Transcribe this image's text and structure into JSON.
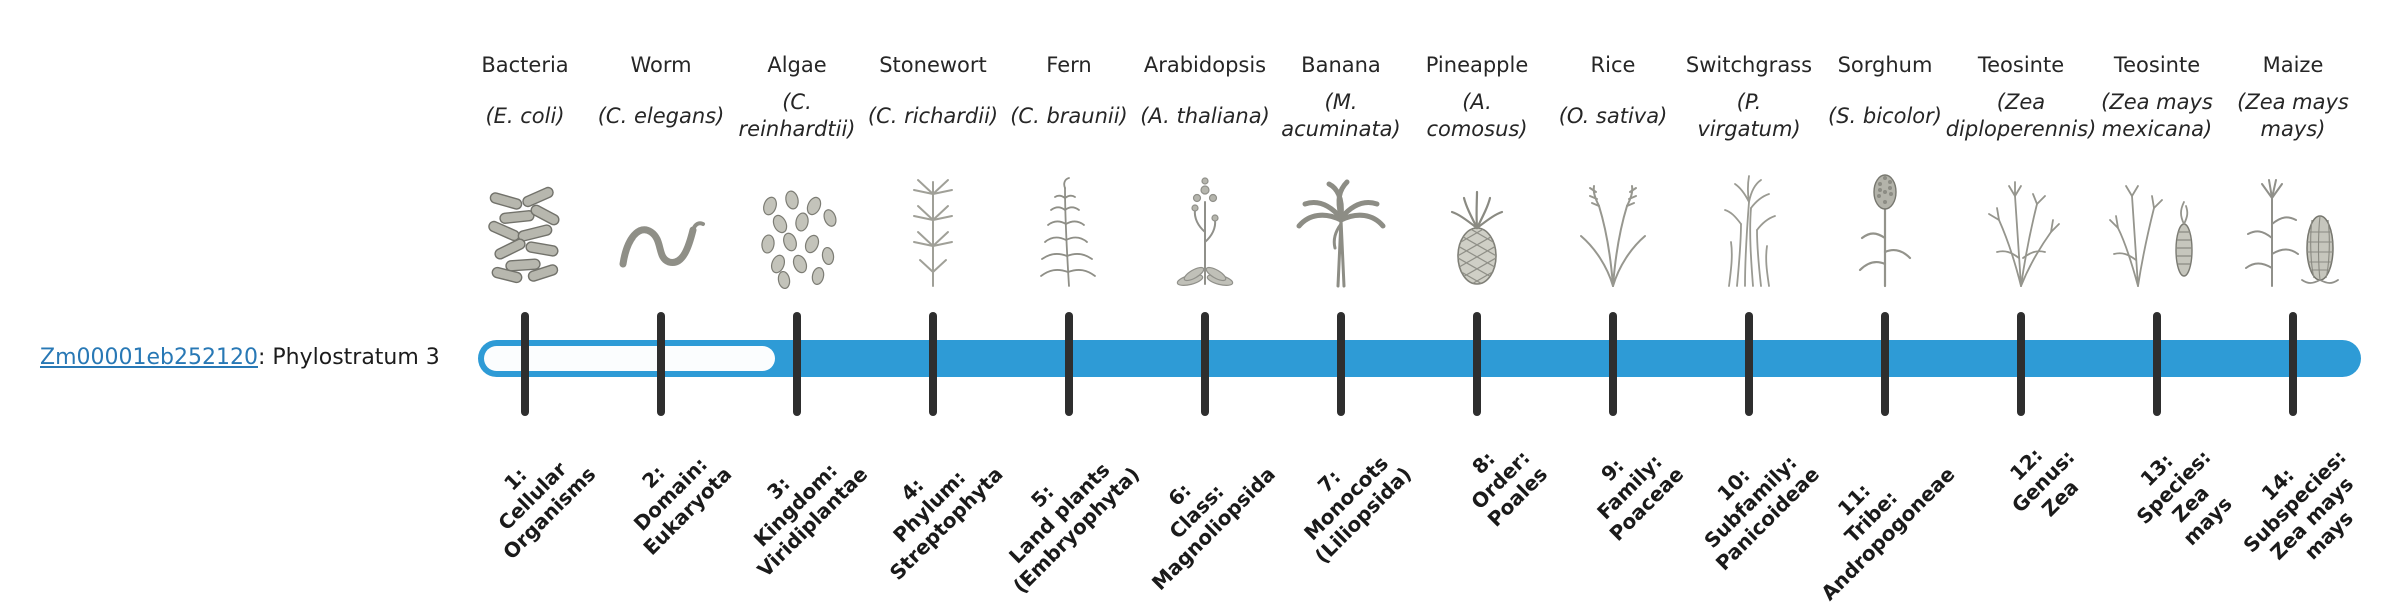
{
  "gene": {
    "id": "Zm00001eb252120",
    "suffix": ": Phylostratum 3"
  },
  "colors": {
    "bar_fill": "#2E9BD6",
    "bar_unfilled": "#fbfdfe",
    "tick": "#2e2e2e",
    "link": "#2878b5"
  },
  "bar": {
    "filled_from_stratum": 3,
    "total_strata": 14
  },
  "phylostrata": [
    {
      "num": 1,
      "species": "Bacteria",
      "sci": "(E. coli)",
      "stratum_label": "1:\nCellular\nOrganisms",
      "icon": "bacteria-icon"
    },
    {
      "num": 2,
      "species": "Worm",
      "sci": "(C. elegans)",
      "stratum_label": "2:\nDomain:\nEukaryota",
      "icon": "worm-icon"
    },
    {
      "num": 3,
      "species": "Algae",
      "sci": "(C.\nreinhardtii)",
      "stratum_label": "3:\nKingdom:\nViridiplantae",
      "icon": "algae-icon"
    },
    {
      "num": 4,
      "species": "Stonewort",
      "sci": "(C. richardii)",
      "stratum_label": "4:\nPhylum:\nStreptophyta",
      "icon": "stonewort-icon"
    },
    {
      "num": 5,
      "species": "Fern",
      "sci": "(C. braunii)",
      "stratum_label": "5:\nLand plants\n(Embryophyta)",
      "icon": "fern-icon"
    },
    {
      "num": 6,
      "species": "Arabidopsis",
      "sci": "(A. thaliana)",
      "stratum_label": "6:\nClass:\nMagnoliopsida",
      "icon": "arabidopsis-icon"
    },
    {
      "num": 7,
      "species": "Banana",
      "sci": "(M.\nacuminata)",
      "stratum_label": "7:\nMonocots\n(Liliopsida)",
      "icon": "banana-icon"
    },
    {
      "num": 8,
      "species": "Pineapple",
      "sci": "(A.\ncomosus)",
      "stratum_label": "8:\nOrder:\nPoales",
      "icon": "pineapple-icon"
    },
    {
      "num": 9,
      "species": "Rice",
      "sci": "(O. sativa)",
      "stratum_label": "9:\nFamily:\nPoaceae",
      "icon": "rice-icon"
    },
    {
      "num": 10,
      "species": "Switchgrass",
      "sci": "(P.\nvirgatum)",
      "stratum_label": "10:\nSubfamily:\nPanicoideae",
      "icon": "switchgrass-icon"
    },
    {
      "num": 11,
      "species": "Sorghum",
      "sci": "(S. bicolor)",
      "stratum_label": "11:\nTribe:\nAndropogoneae",
      "icon": "sorghum-icon"
    },
    {
      "num": 12,
      "species": "Teosinte",
      "sci": "(Zea\ndiploperennis)",
      "stratum_label": "12:\nGenus:\nZea",
      "icon": "teosinte-icon"
    },
    {
      "num": 13,
      "species": "Teosinte",
      "sci": "(Zea mays\nmexicana)",
      "stratum_label": "13:\nSpecies:\nZea\nmays",
      "icon": "teosinte-ear-icon"
    },
    {
      "num": 14,
      "species": "Maize",
      "sci": "(Zea mays\nmays)",
      "stratum_label": "14:\nSubspecies:\nZea mays\nmays",
      "icon": "maize-icon"
    }
  ],
  "chart_data": {
    "type": "bar",
    "title": "Zm00001eb252120: Phylostratum 3",
    "categories": [
      "1: Cellular Organisms",
      "2: Domain: Eukaryota",
      "3: Kingdom: Viridiplantae",
      "4: Phylum: Streptophyta",
      "5: Land plants (Embryophyta)",
      "6: Class: Magnoliopsida",
      "7: Monocots (Liliopsida)",
      "8: Order: Poales",
      "9: Family: Poaceae",
      "10: Subfamily: Panicoideae",
      "11: Tribe: Andropogoneae",
      "12: Genus: Zea",
      "13: Species: Zea mays",
      "14: Subspecies: Zea mays mays"
    ],
    "series": [
      {
        "name": "Zm00001eb252120",
        "filled_from": 3,
        "filled_to": 14
      }
    ],
    "annotations": "Horizontal capsule timeline; segment before phylostratum 3 is unfilled (white with blue outline), filled solid blue from phylostratum 3 through 14. Each stratum marked by a dark vertical tick with a calibrating species pictured above."
  }
}
